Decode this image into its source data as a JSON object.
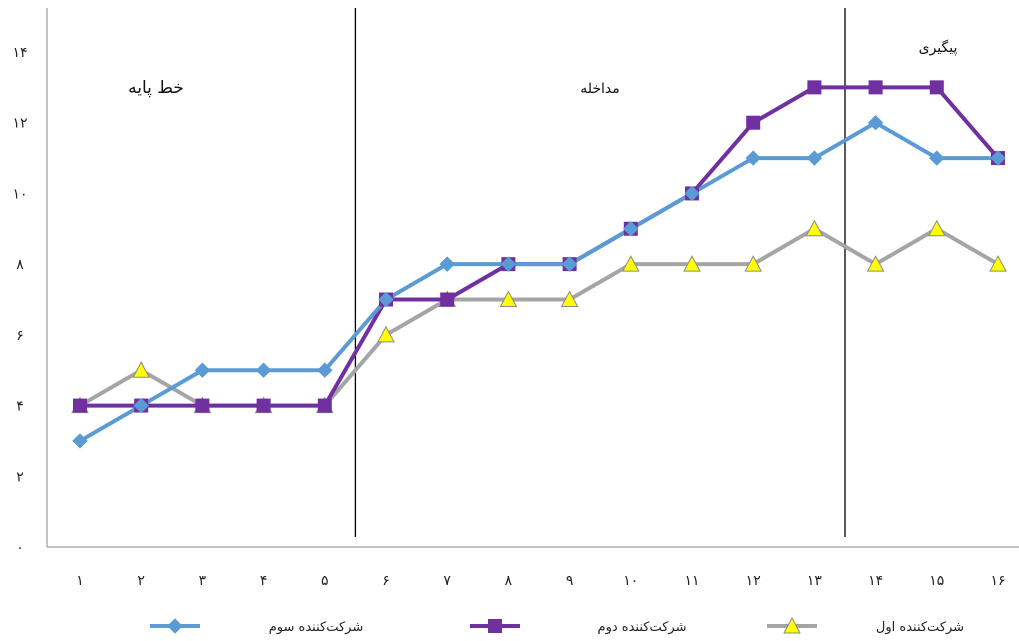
{
  "chart_data": {
    "type": "line",
    "x": [
      "۱",
      "۲",
      "۳",
      "۴",
      "۵",
      "۶",
      "۷",
      "۸",
      "۹",
      "۱۰",
      "۱۱",
      "۱۲",
      "۱۳",
      "۱۴",
      "۱۵",
      "۱۶"
    ],
    "y_ticks": [
      "۰",
      "۲",
      "۴",
      "۶",
      "۸",
      "۱۰",
      "۱۲",
      "۱۴"
    ],
    "ylim": [
      0,
      14
    ],
    "grid": false,
    "legend_position": "bottom",
    "series": [
      {
        "name": "شرکت‌کننده سوم",
        "marker": "diamond",
        "color": "#5B9BD5",
        "values": [
          3,
          4,
          5,
          5,
          5,
          7,
          8,
          8,
          8,
          9,
          10,
          11,
          11,
          12,
          11,
          11
        ]
      },
      {
        "name": "شرکت‌کننده دوم",
        "marker": "square",
        "color": "#7030A0",
        "values": [
          4,
          4,
          4,
          4,
          4,
          7,
          7,
          8,
          8,
          9,
          10,
          12,
          13,
          13,
          13,
          11
        ]
      },
      {
        "name": "شرکت‌کننده اول",
        "marker": "triangle",
        "color": "#A5A5A5",
        "marker_fill": "#FFFF00",
        "values": [
          4,
          5,
          4,
          4,
          4,
          6,
          7,
          7,
          7,
          8,
          8,
          8,
          9,
          8,
          9,
          8
        ]
      }
    ],
    "phase_boundaries_after_x": [
      5.5,
      13.5
    ],
    "phases": [
      {
        "label": "خط پایه"
      },
      {
        "label": "مداخله"
      },
      {
        "label": "پیگیری"
      }
    ]
  }
}
